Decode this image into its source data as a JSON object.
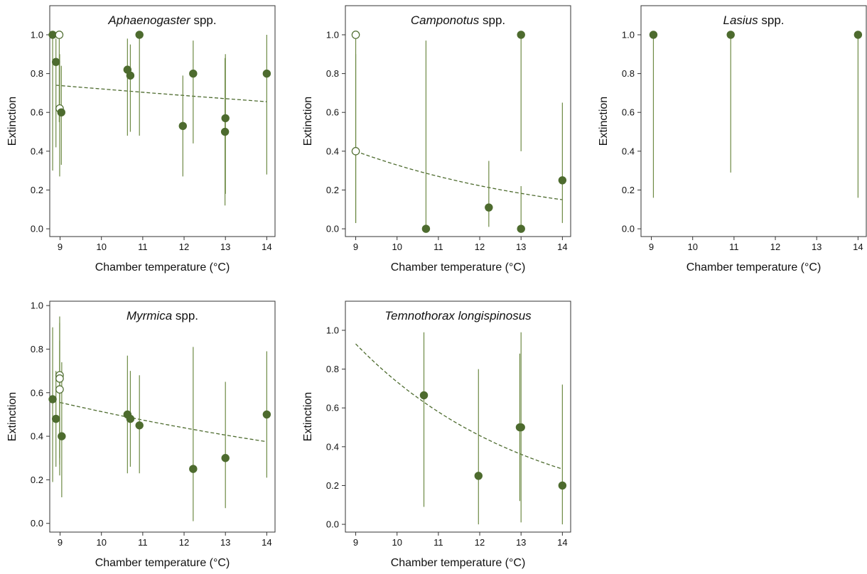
{
  "colors": {
    "marker": "#4d6b2e",
    "errorbar": "#6e8a45",
    "fit": "#4d6b2e",
    "frame": "#333333"
  },
  "chart_data": [
    {
      "type": "scatter",
      "title_italic": "Aphaenogaster",
      "title_rest": " spp.",
      "xlabel": "Chamber temperature (°C)",
      "ylabel": "Extinction",
      "xlim": [
        8.75,
        14.2
      ],
      "ylim": [
        -0.04,
        1.15
      ],
      "xticks": [
        "9",
        "10",
        "11",
        "12",
        "13",
        "14"
      ],
      "yticks": [
        "0.0",
        "0.2",
        "0.4",
        "0.6",
        "0.8",
        "1.0"
      ],
      "points": [
        {
          "x": 8.82,
          "y": 1.0,
          "lo": 0.3,
          "hi": 1.0,
          "filled": true
        },
        {
          "x": 8.9,
          "y": 0.86,
          "lo": 0.42,
          "hi": 0.98,
          "filled": true
        },
        {
          "x": 8.98,
          "y": 1.0,
          "lo": 0.55,
          "hi": 1.0,
          "filled": false
        },
        {
          "x": 8.99,
          "y": 0.62,
          "lo": 0.27,
          "hi": 0.9,
          "filled": false
        },
        {
          "x": 9.03,
          "y": 0.6,
          "lo": 0.33,
          "hi": 0.84,
          "filled": true
        },
        {
          "x": 10.63,
          "y": 0.82,
          "lo": 0.48,
          "hi": 0.98,
          "filled": true
        },
        {
          "x": 10.7,
          "y": 0.79,
          "lo": 0.5,
          "hi": 0.95,
          "filled": true
        },
        {
          "x": 10.92,
          "y": 1.0,
          "lo": 0.48,
          "hi": 1.0,
          "filled": true
        },
        {
          "x": 11.97,
          "y": 0.53,
          "lo": 0.27,
          "hi": 0.79,
          "filled": true
        },
        {
          "x": 12.22,
          "y": 0.8,
          "lo": 0.44,
          "hi": 0.97,
          "filled": true
        },
        {
          "x": 13.0,
          "y": 0.57,
          "lo": 0.18,
          "hi": 0.9,
          "filled": true
        },
        {
          "x": 12.99,
          "y": 0.5,
          "lo": 0.12,
          "hi": 0.88,
          "filled": true
        },
        {
          "x": 14.0,
          "y": 0.8,
          "lo": 0.28,
          "hi": 1.0,
          "filled": true
        }
      ],
      "fit": {
        "x": [
          8.9,
          14.0
        ],
        "y": [
          0.74,
          0.655
        ]
      }
    },
    {
      "type": "scatter",
      "title_italic": "Camponotus",
      "title_rest": " spp.",
      "xlabel": "Chamber temperature (°C)",
      "ylabel": "Extinction",
      "xlim": [
        8.75,
        14.2
      ],
      "ylim": [
        -0.04,
        1.15
      ],
      "xticks": [
        "9",
        "10",
        "11",
        "12",
        "13",
        "14"
      ],
      "yticks": [
        "0.0",
        "0.2",
        "0.4",
        "0.6",
        "0.8",
        "1.0"
      ],
      "points": [
        {
          "x": 9.0,
          "y": 1.0,
          "lo": 0.03,
          "hi": 1.0,
          "filled": false
        },
        {
          "x": 9.0,
          "y": 0.4,
          "lo": 0.03,
          "hi": 0.9,
          "filled": false
        },
        {
          "x": 10.7,
          "y": 0.0,
          "lo": 0.0,
          "hi": 0.97,
          "filled": true
        },
        {
          "x": 12.22,
          "y": 0.11,
          "lo": 0.01,
          "hi": 0.35,
          "filled": true
        },
        {
          "x": 13.0,
          "y": 1.0,
          "lo": 0.4,
          "hi": 1.0,
          "filled": true
        },
        {
          "x": 13.0,
          "y": 0.0,
          "lo": 0.0,
          "hi": 0.22,
          "filled": true
        },
        {
          "x": 14.0,
          "y": 0.25,
          "lo": 0.03,
          "hi": 0.65,
          "filled": true
        }
      ],
      "fit": {
        "x": [
          9.0,
          14.0
        ],
        "y": [
          0.4,
          0.15
        ]
      }
    },
    {
      "type": "scatter",
      "title_italic": "Lasius",
      "title_rest": " spp.",
      "xlabel": "Chamber temperature (°C)",
      "ylabel": "Extinction",
      "xlim": [
        8.75,
        14.2
      ],
      "ylim": [
        -0.04,
        1.15
      ],
      "xticks": [
        "9",
        "10",
        "11",
        "12",
        "13",
        "14"
      ],
      "yticks": [
        "0.0",
        "0.2",
        "0.4",
        "0.6",
        "0.8",
        "1.0"
      ],
      "points": [
        {
          "x": 9.05,
          "y": 1.0,
          "lo": 0.16,
          "hi": 1.0,
          "filled": true
        },
        {
          "x": 10.92,
          "y": 1.0,
          "lo": 0.29,
          "hi": 1.0,
          "filled": true
        },
        {
          "x": 14.0,
          "y": 1.0,
          "lo": 0.16,
          "hi": 1.0,
          "filled": true
        }
      ],
      "fit": null
    },
    {
      "type": "scatter",
      "title_italic": "Myrmica",
      "title_rest": " spp.",
      "xlabel": "Chamber temperature (°C)",
      "ylabel": "Extinction",
      "xlim": [
        8.75,
        14.2
      ],
      "ylim": [
        -0.04,
        1.02
      ],
      "xticks": [
        "9",
        "10",
        "11",
        "12",
        "13",
        "14"
      ],
      "yticks": [
        "0.0",
        "0.2",
        "0.4",
        "0.6",
        "0.8",
        "1.0"
      ],
      "points": [
        {
          "x": 8.82,
          "y": 0.57,
          "lo": 0.19,
          "hi": 0.9,
          "filled": true
        },
        {
          "x": 8.9,
          "y": 0.48,
          "lo": 0.26,
          "hi": 0.7,
          "filled": true
        },
        {
          "x": 8.99,
          "y": 0.68,
          "lo": 0.22,
          "hi": 0.95,
          "filled": false
        },
        {
          "x": 8.99,
          "y": 0.665,
          "lo": 0.27,
          "hi": 0.92,
          "filled": false
        },
        {
          "x": 8.99,
          "y": 0.615,
          "lo": 0.3,
          "hi": 0.84,
          "filled": false
        },
        {
          "x": 9.04,
          "y": 0.4,
          "lo": 0.12,
          "hi": 0.74,
          "filled": true
        },
        {
          "x": 10.63,
          "y": 0.5,
          "lo": 0.23,
          "hi": 0.77,
          "filled": true
        },
        {
          "x": 10.7,
          "y": 0.48,
          "lo": 0.26,
          "hi": 0.7,
          "filled": true
        },
        {
          "x": 10.92,
          "y": 0.45,
          "lo": 0.23,
          "hi": 0.68,
          "filled": true
        },
        {
          "x": 12.22,
          "y": 0.25,
          "lo": 0.01,
          "hi": 0.81,
          "filled": true
        },
        {
          "x": 13.0,
          "y": 0.3,
          "lo": 0.07,
          "hi": 0.65,
          "filled": true
        },
        {
          "x": 14.0,
          "y": 0.5,
          "lo": 0.21,
          "hi": 0.79,
          "filled": true
        }
      ],
      "fit": {
        "x": [
          9.0,
          14.0
        ],
        "y": [
          0.555,
          0.375
        ]
      }
    },
    {
      "type": "scatter",
      "title_italic": "Temnothorax longispinosus",
      "title_rest": "",
      "xlabel": "Chamber temperature (°C)",
      "ylabel": "Extinction",
      "xlim": [
        8.75,
        14.2
      ],
      "ylim": [
        -0.04,
        1.15
      ],
      "xticks": [
        "9",
        "10",
        "11",
        "12",
        "13",
        "14"
      ],
      "yticks": [
        "0.0",
        "0.2",
        "0.4",
        "0.6",
        "0.8",
        "1.0"
      ],
      "points": [
        {
          "x": 10.65,
          "y": 0.665,
          "lo": 0.09,
          "hi": 0.99,
          "filled": true
        },
        {
          "x": 11.97,
          "y": 0.25,
          "lo": 0.0,
          "hi": 0.8,
          "filled": true
        },
        {
          "x": 12.97,
          "y": 0.5,
          "lo": 0.12,
          "hi": 0.88,
          "filled": true
        },
        {
          "x": 13.0,
          "y": 0.5,
          "lo": 0.01,
          "hi": 0.99,
          "filled": true
        },
        {
          "x": 14.0,
          "y": 0.2,
          "lo": 0.0,
          "hi": 0.72,
          "filled": true
        }
      ],
      "fit": {
        "x": [
          9.0,
          14.0
        ],
        "y": [
          0.93,
          0.285
        ],
        "curve": "exp"
      }
    }
  ]
}
